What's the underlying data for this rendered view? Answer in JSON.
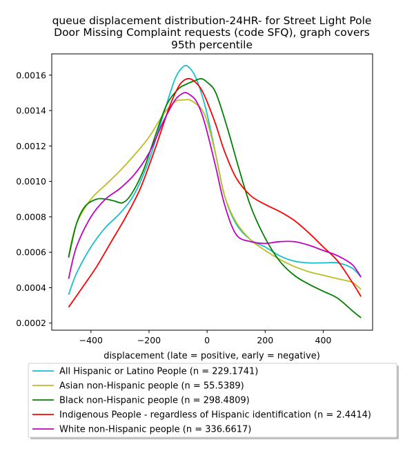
{
  "chart_data": {
    "type": "line",
    "title": [
      "queue displacement distribution-24HR-  for Street Light Pole",
      "Door Missing Complaint  requests (code SFQ), graph covers",
      "95th percentile"
    ],
    "xlabel": "displacement (late = positive, early = negative)",
    "ylabel": "",
    "xlim": [
      -535,
      570
    ],
    "ylim": [
      0.00016,
      0.00172
    ],
    "x_ticks": [
      -400,
      -200,
      0,
      200,
      400
    ],
    "x_tick_labels": [
      "−400",
      "−200",
      "0",
      "200",
      "400"
    ],
    "y_ticks": [
      0.0002,
      0.0004,
      0.0006,
      0.0008,
      0.001,
      0.0012,
      0.0014,
      0.0016
    ],
    "y_tick_labels": [
      "0.0002",
      "0.0004",
      "0.0006",
      "0.0008",
      "0.0010",
      "0.0012",
      "0.0014",
      "0.0016"
    ],
    "grid": false,
    "legend_position": "bottom",
    "series": [
      {
        "name": "All Hispanic or Latino People (n = 229.1741)",
        "color": "#17becf",
        "x": [
          -477,
          -450,
          -400,
          -350,
          -300,
          -250,
          -200,
          -150,
          -110,
          -80,
          -60,
          -40,
          -20,
          0,
          30,
          60,
          100,
          150,
          200,
          250,
          300,
          350,
          400,
          450,
          500,
          530
        ],
        "y": [
          0.00036,
          0.00048,
          0.00063,
          0.00074,
          0.00082,
          0.00093,
          0.00112,
          0.00138,
          0.00158,
          0.00165,
          0.00164,
          0.00159,
          0.0015,
          0.00138,
          0.00115,
          0.00092,
          0.00076,
          0.00067,
          0.00063,
          0.00058,
          0.00055,
          0.00054,
          0.00054,
          0.00054,
          0.00051,
          0.00046
        ]
      },
      {
        "name": "Asian non-Hispanic people (n = 55.5389)",
        "color": "#bcbd22",
        "x": [
          -477,
          -450,
          -400,
          -350,
          -300,
          -250,
          -200,
          -150,
          -110,
          -80,
          -60,
          -40,
          -20,
          0,
          30,
          60,
          100,
          150,
          200,
          250,
          300,
          350,
          400,
          450,
          500,
          530
        ],
        "y": [
          0.00058,
          0.00076,
          0.0009,
          0.00098,
          0.00106,
          0.00115,
          0.00125,
          0.00138,
          0.00145,
          0.00146,
          0.00146,
          0.00144,
          0.00141,
          0.00134,
          0.00115,
          0.00092,
          0.00077,
          0.00067,
          0.00061,
          0.00056,
          0.00052,
          0.00049,
          0.00047,
          0.00045,
          0.00043,
          0.00039
        ]
      },
      {
        "name": "Black non-Hispanic people (n = 298.4809)",
        "color": "#008000",
        "x": [
          -477,
          -450,
          -420,
          -380,
          -350,
          -320,
          -290,
          -260,
          -220,
          -180,
          -140,
          -100,
          -70,
          -40,
          -20,
          0,
          30,
          70,
          110,
          150,
          200,
          250,
          300,
          350,
          400,
          450,
          500,
          530
        ],
        "y": [
          0.00057,
          0.00076,
          0.00086,
          0.0009,
          0.0009,
          0.00089,
          0.00088,
          0.00093,
          0.00106,
          0.00125,
          0.00143,
          0.00152,
          0.00155,
          0.00157,
          0.00158,
          0.00156,
          0.0015,
          0.0013,
          0.00107,
          0.00086,
          0.00068,
          0.00055,
          0.00047,
          0.00042,
          0.00038,
          0.00034,
          0.00027,
          0.00023
        ]
      },
      {
        "name": "Indigenous People - regardless of Hispanic identification (n = 2.4414)",
        "color": "#ff0000",
        "x": [
          -477,
          -430,
          -380,
          -330,
          -280,
          -230,
          -180,
          -130,
          -100,
          -80,
          -60,
          -40,
          -20,
          0,
          30,
          60,
          100,
          150,
          200,
          250,
          300,
          350,
          400,
          450,
          500,
          530
        ],
        "y": [
          0.00029,
          0.0004,
          0.00052,
          0.00066,
          0.0008,
          0.00096,
          0.00118,
          0.00142,
          0.00153,
          0.00157,
          0.00158,
          0.00156,
          0.00152,
          0.00145,
          0.00132,
          0.00117,
          0.00102,
          0.00092,
          0.00087,
          0.00083,
          0.00078,
          0.00071,
          0.00063,
          0.00055,
          0.00043,
          0.00035
        ]
      },
      {
        "name": "White non-Hispanic people (n = 336.6617)",
        "color": "#bf00bf",
        "x": [
          -477,
          -450,
          -400,
          -350,
          -300,
          -250,
          -200,
          -150,
          -110,
          -80,
          -60,
          -40,
          -20,
          0,
          30,
          60,
          100,
          150,
          200,
          250,
          300,
          350,
          400,
          450,
          500,
          530
        ],
        "y": [
          0.00045,
          0.00063,
          0.0008,
          0.0009,
          0.00096,
          0.00104,
          0.00116,
          0.00134,
          0.00146,
          0.0015,
          0.00149,
          0.00146,
          0.00139,
          0.00128,
          0.00108,
          0.00087,
          0.0007,
          0.00066,
          0.00065,
          0.00066,
          0.00066,
          0.00064,
          0.00061,
          0.00058,
          0.00053,
          0.00046
        ]
      }
    ]
  }
}
